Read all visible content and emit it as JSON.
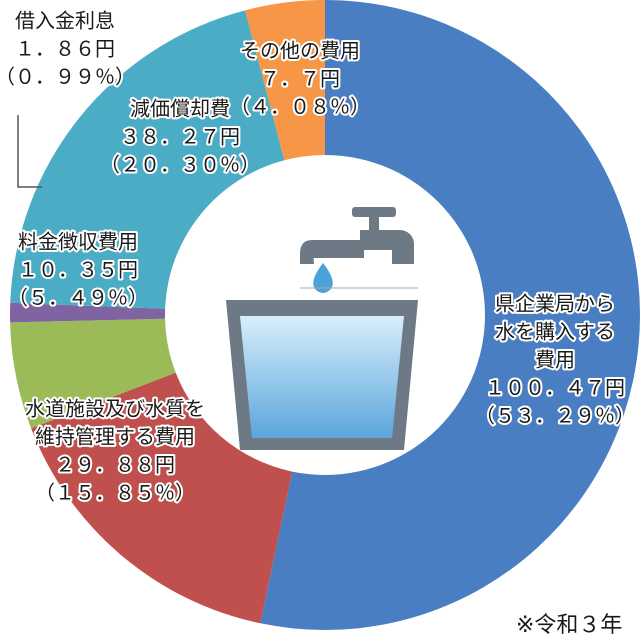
{
  "chart_data": {
    "type": "donut",
    "categories": [
      [
        "県企業局から",
        "水を購入する",
        "費用"
      ],
      [
        "水道施設及び水質を",
        "維持管理する費用"
      ],
      [
        "料金徴収費用"
      ],
      [
        "借入金利息"
      ],
      [
        "減価償却費"
      ],
      [
        "その他の費用"
      ]
    ],
    "values": [
      100.47,
      29.88,
      10.35,
      1.86,
      38.27,
      7.7
    ],
    "value_labels": [
      "１００．４７円",
      "２９．８８円",
      "１０．３５円",
      "１．８６円",
      "３８．２７円",
      "７．７円"
    ],
    "percents": [
      53.29,
      15.85,
      5.49,
      0.99,
      20.3,
      4.08
    ],
    "percent_labels": [
      "（５３．２９％）",
      "（１５．８５％）",
      "（５．４９％）",
      "（０．９９％）",
      "（２０．３０％）",
      "（４．０８％）"
    ],
    "colors": [
      "#4a7ec2",
      "#c0504d",
      "#9bbb59",
      "#8064a2",
      "#4bacc6",
      "#f79646"
    ],
    "note": "※令和３年"
  }
}
